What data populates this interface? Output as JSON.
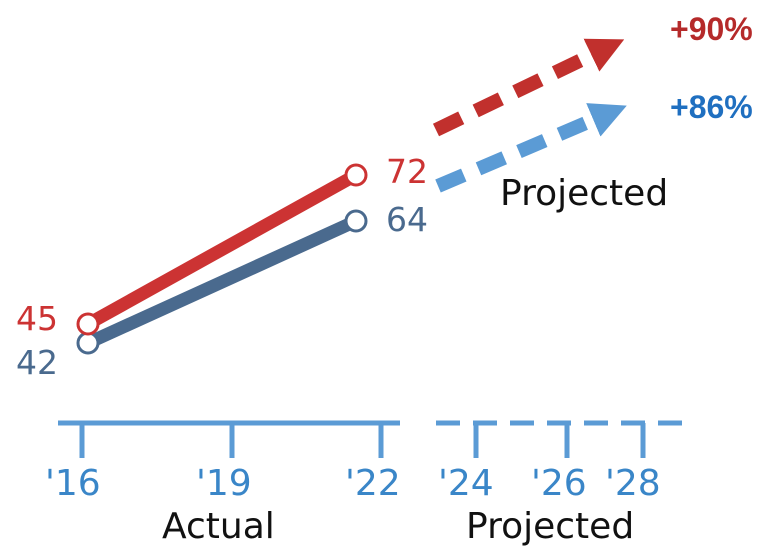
{
  "chart_data": {
    "type": "line",
    "x": [
      "'16",
      "'22"
    ],
    "series": [
      {
        "values": [
          45,
          72
        ],
        "color": "#cc3333",
        "projected_change": "+90%",
        "arrow_color": "#c1302d",
        "label_color": "#b52a2a"
      },
      {
        "values": [
          42,
          64
        ],
        "color": "#4a6a8e",
        "projected_change": "+86%",
        "arrow_color": "#5b9bd5",
        "label_color": "#1f6fc0"
      }
    ],
    "projection_label": "Projected",
    "axis": {
      "actual_ticks": [
        "'16",
        "'19",
        "'22"
      ],
      "projected_ticks": [
        "'24",
        "'26",
        "'28"
      ],
      "actual_label": "Actual",
      "projected_label": "Projected",
      "color": "#5b9bd5"
    },
    "grid": false
  }
}
